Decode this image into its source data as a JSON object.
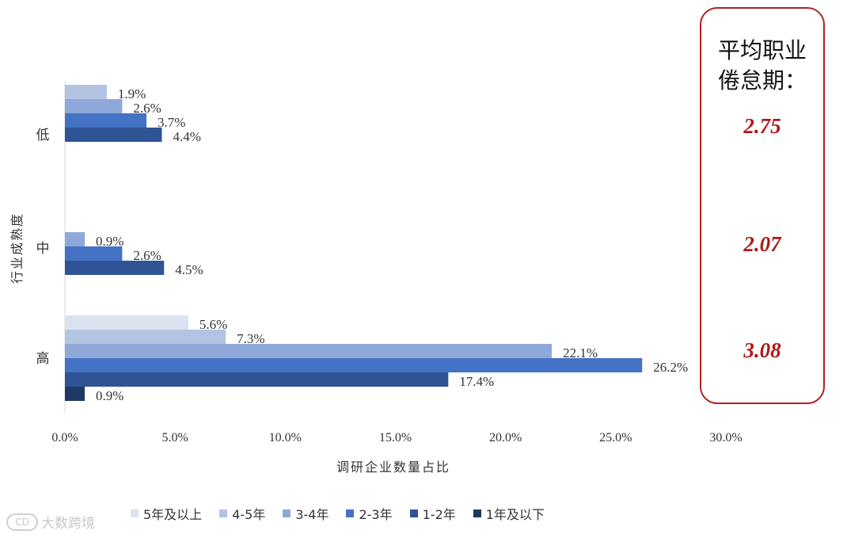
{
  "chart_data": {
    "type": "bar",
    "orientation": "horizontal",
    "ylabel": "行业成熟度",
    "xlabel": "调研企业数量占比",
    "xlim": [
      0,
      30
    ],
    "x_ticks": [
      "0.0%",
      "5.0%",
      "10.0%",
      "15.0%",
      "20.0%",
      "25.0%",
      "30.0%"
    ],
    "categories": [
      "低",
      "中",
      "高"
    ],
    "series": [
      {
        "name": "5年及以上",
        "color": "#dbe3f1",
        "values": [
          null,
          null,
          5.6
        ],
        "labels": [
          null,
          null,
          "5.6%"
        ]
      },
      {
        "name": "4-5年",
        "color": "#b3c4e2",
        "values": [
          1.9,
          null,
          7.3
        ],
        "labels": [
          "1.9%",
          null,
          "7.3%"
        ]
      },
      {
        "name": "3-4年",
        "color": "#8ea9d9",
        "values": [
          2.6,
          0.9,
          22.1
        ],
        "labels": [
          "2.6%",
          "0.9%",
          "22.1%"
        ]
      },
      {
        "name": "2-3年",
        "color": "#4472c4",
        "values": [
          3.7,
          2.6,
          26.2
        ],
        "labels": [
          "3.7%",
          "2.6%",
          "26.2%"
        ]
      },
      {
        "name": "1-2年",
        "color": "#2f5496",
        "values": [
          4.4,
          4.5,
          17.4
        ],
        "labels": [
          "4.4%",
          "4.5%",
          "17.4%"
        ]
      },
      {
        "name": "1年及以下",
        "color": "#1f3864",
        "values": [
          null,
          null,
          0.9
        ],
        "labels": [
          null,
          null,
          "0.9%"
        ]
      }
    ],
    "legend_position": "bottom"
  },
  "side_panel": {
    "title_line1": "平均职业",
    "title_line2": "倦怠期：",
    "values": [
      "2.75",
      "2.07",
      "3.08"
    ],
    "accent_color": "#b01717"
  },
  "watermark": {
    "logo_text": "CD",
    "text": "大数跨境"
  }
}
